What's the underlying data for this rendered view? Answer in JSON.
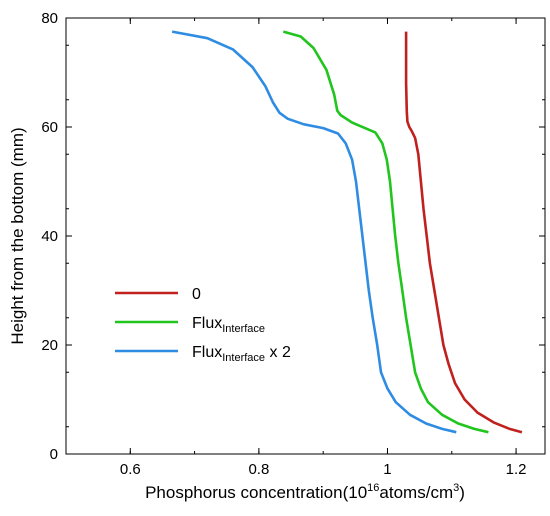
{
  "chart_data": {
    "type": "line",
    "title": "",
    "xlabel": {
      "main": "Phosphorus concentration(10",
      "sup": "16",
      "rest": "atoms/cm",
      "sup2": "3",
      "end": ")"
    },
    "ylabel": "Height from the bottom (mm)",
    "xlim": [
      0.5,
      1.245
    ],
    "ylim": [
      0,
      80
    ],
    "x_ticks": [
      0.6,
      0.8,
      1,
      1.2
    ],
    "x_tick_labels": [
      "0.6",
      "0.8",
      "1",
      "1.2"
    ],
    "y_ticks": [
      0,
      20,
      40,
      60,
      80
    ],
    "y_tick_labels": [
      "0",
      "20",
      "40",
      "60",
      "80"
    ],
    "grid": false,
    "legend_position": "left-lower",
    "legend": [
      {
        "main": "0",
        "sub": "",
        "suffix": ""
      },
      {
        "main": "Flux",
        "sub": "Interface",
        "suffix": ""
      },
      {
        "main": "Flux",
        "sub": "Interface",
        "suffix": " x 2"
      }
    ],
    "series": [
      {
        "color": "#c0201e",
        "points": [
          [
            1.209,
            4.0
          ],
          [
            1.19,
            4.6
          ],
          [
            1.165,
            5.8
          ],
          [
            1.14,
            7.6
          ],
          [
            1.12,
            10.0
          ],
          [
            1.105,
            13.0
          ],
          [
            1.095,
            16.5
          ],
          [
            1.087,
            20.0
          ],
          [
            1.08,
            25.0
          ],
          [
            1.073,
            30.0
          ],
          [
            1.066,
            35.0
          ],
          [
            1.061,
            40.0
          ],
          [
            1.056,
            45.0
          ],
          [
            1.052,
            50.0
          ],
          [
            1.048,
            55.0
          ],
          [
            1.043,
            58.0
          ],
          [
            1.038,
            59.2
          ],
          [
            1.034,
            60.0
          ],
          [
            1.031,
            61.0
          ],
          [
            1.03,
            62.8
          ],
          [
            1.029,
            68.0
          ],
          [
            1.029,
            73.0
          ],
          [
            1.029,
            77.5
          ]
        ]
      },
      {
        "color": "#22c41e",
        "points": [
          [
            1.157,
            4.0
          ],
          [
            1.135,
            4.6
          ],
          [
            1.11,
            5.6
          ],
          [
            1.085,
            7.2
          ],
          [
            1.063,
            9.5
          ],
          [
            1.052,
            12.0
          ],
          [
            1.043,
            15.0
          ],
          [
            1.036,
            20.0
          ],
          [
            1.029,
            25.0
          ],
          [
            1.023,
            30.0
          ],
          [
            1.017,
            35.0
          ],
          [
            1.012,
            40.0
          ],
          [
            1.008,
            45.0
          ],
          [
            1.004,
            50.0
          ],
          [
            0.999,
            54.0
          ],
          [
            0.992,
            57.0
          ],
          [
            0.981,
            59.0
          ],
          [
            0.965,
            59.8
          ],
          [
            0.945,
            60.8
          ],
          [
            0.927,
            62.2
          ],
          [
            0.922,
            63.0
          ],
          [
            0.917,
            66.0
          ],
          [
            0.905,
            70.5
          ],
          [
            0.885,
            74.5
          ],
          [
            0.865,
            76.6
          ],
          [
            0.838,
            77.5
          ]
        ]
      },
      {
        "color": "#2f8ce3",
        "points": [
          [
            1.107,
            4.0
          ],
          [
            1.085,
            4.6
          ],
          [
            1.06,
            5.6
          ],
          [
            1.035,
            7.2
          ],
          [
            1.013,
            9.5
          ],
          [
            1.0,
            12.0
          ],
          [
            0.99,
            15.0
          ],
          [
            0.984,
            20.0
          ],
          [
            0.977,
            25.0
          ],
          [
            0.971,
            30.0
          ],
          [
            0.966,
            35.0
          ],
          [
            0.961,
            40.0
          ],
          [
            0.956,
            45.0
          ],
          [
            0.951,
            50.0
          ],
          [
            0.945,
            54.0
          ],
          [
            0.935,
            57.0
          ],
          [
            0.923,
            58.8
          ],
          [
            0.9,
            59.8
          ],
          [
            0.87,
            60.5
          ],
          [
            0.845,
            61.5
          ],
          [
            0.832,
            62.6
          ],
          [
            0.822,
            64.5
          ],
          [
            0.81,
            67.5
          ],
          [
            0.79,
            71.0
          ],
          [
            0.76,
            74.2
          ],
          [
            0.72,
            76.3
          ],
          [
            0.665,
            77.5
          ]
        ]
      }
    ]
  }
}
